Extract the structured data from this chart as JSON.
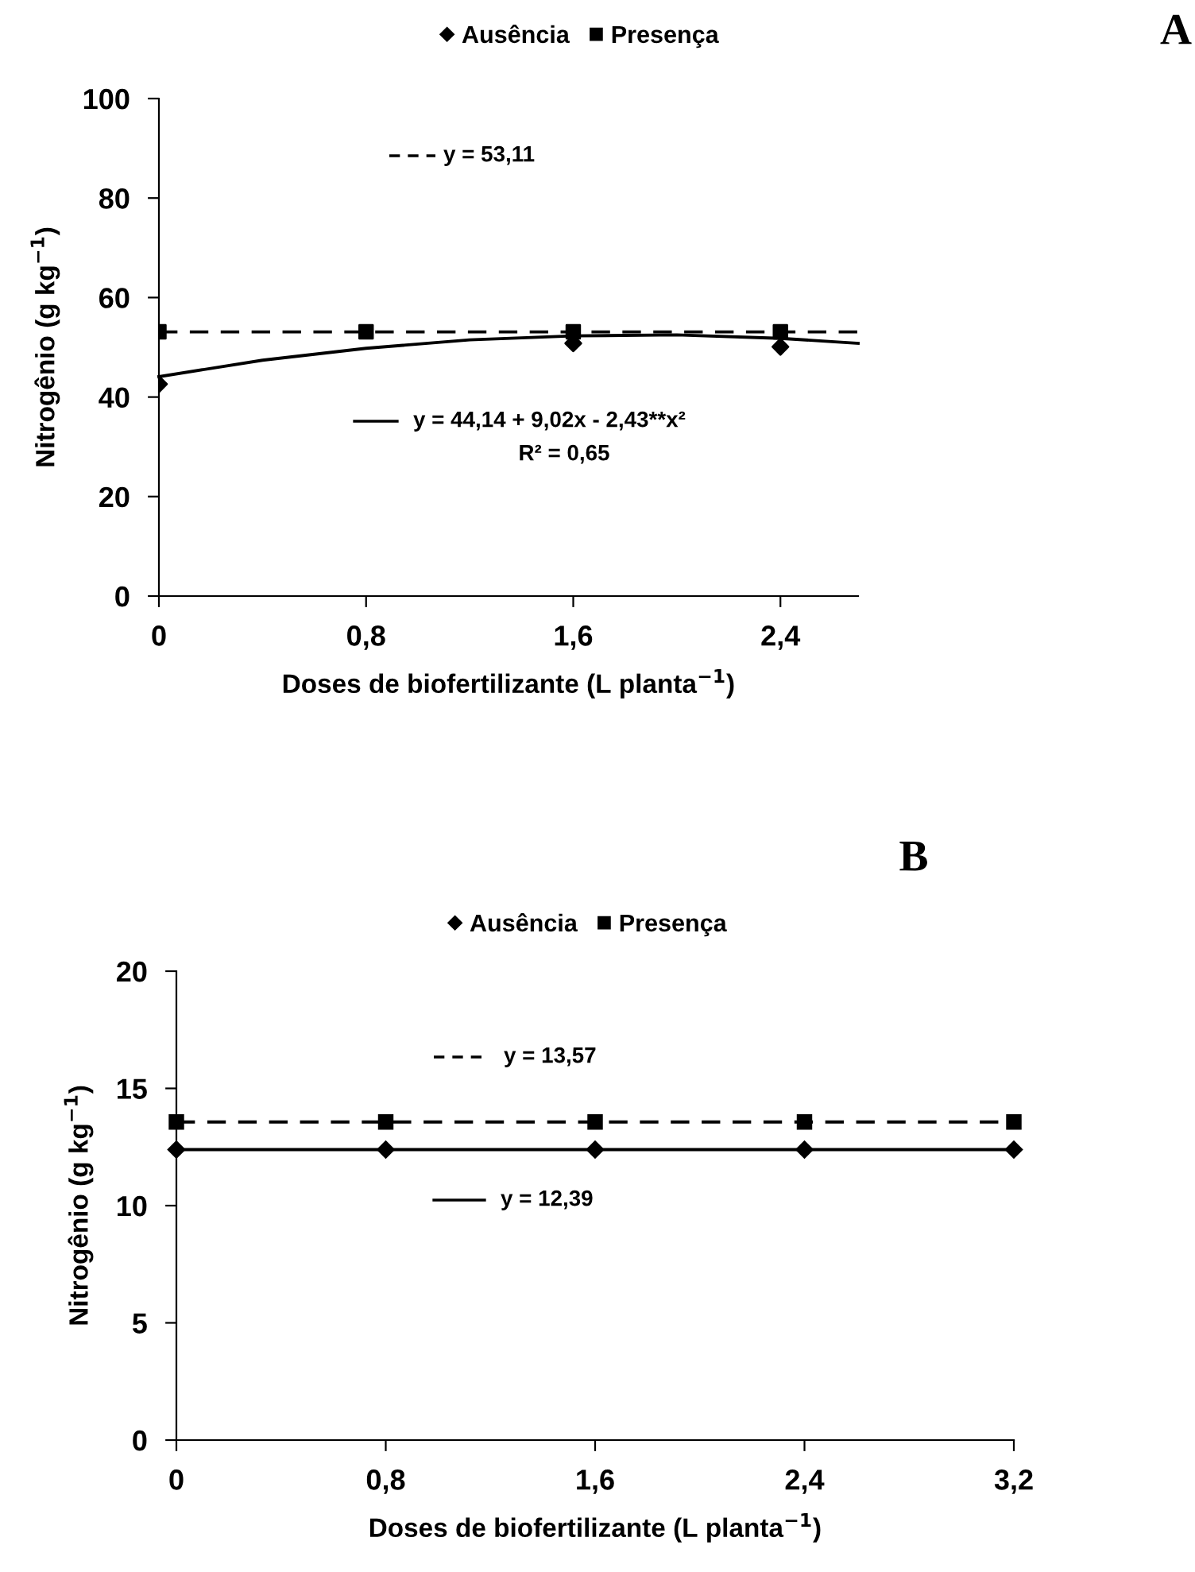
{
  "chart_data": [
    {
      "type": "scatter",
      "xlabel": "Doses de biofertilizante (L planta$^{−1}$)",
      "ylabel": "Nitrogênio (g kg$^{−1}$)",
      "xlim": [
        0,
        2.7
      ],
      "xticks": [
        0,
        {
          "value": 0.8,
          "label": "0,8"
        },
        {
          "value": 1.6,
          "label": "1,6"
        },
        {
          "value": 2.4,
          "label": "2,4"
        }
      ],
      "ylim": [
        0,
        100
      ],
      "yticks": [
        0,
        20,
        40,
        60,
        80,
        100
      ],
      "grid": false,
      "legend": "top",
      "annotations": [
        "A",
        "y = 53,11",
        "y = 44,14 + 9,02x - 2,43**x²",
        "R² = 0,65"
      ],
      "series": [
        {
          "name": "Ausência",
          "marker": "diamond",
          "color": "#000000",
          "x": [
            0,
            0.8,
            1.6,
            2.4
          ],
          "values": [
            42.6,
            null,
            50.8,
            50.1
          ]
        },
        {
          "name": "Presença",
          "marker": "square",
          "color": "#000000",
          "x": [
            0,
            0.8,
            1.6,
            2.4
          ],
          "values": [
            53.1,
            53.1,
            53.1,
            53.1
          ]
        },
        {
          "type": "line",
          "line_style": "solid",
          "color": "#000000",
          "x": [
            0,
            0.4,
            0.8,
            1.2,
            1.6,
            2.0,
            2.4,
            2.7
          ],
          "values": [
            44.1,
            47.4,
            49.8,
            51.5,
            52.3,
            52.5,
            51.8,
            50.8
          ]
        },
        {
          "type": "line",
          "line_style": "dashed",
          "color": "#000000",
          "x": [
            0,
            2.7
          ],
          "values": [
            53.1,
            53.1
          ]
        }
      ]
    },
    {
      "type": "line",
      "xlabel": "Doses de biofertilizante (L planta$^{−1}$)",
      "ylabel": "Nitrogênio (g kg$^{−1}$)",
      "xlim": [
        0,
        3.2
      ],
      "xticks": [
        0,
        {
          "value": 0.8,
          "label": "0,8"
        },
        {
          "value": 1.6,
          "label": "1,6"
        },
        {
          "value": 2.4,
          "label": "2,4"
        },
        {
          "value": 3.2,
          "label": "3,2"
        }
      ],
      "ylim": [
        0,
        20
      ],
      "yticks": [
        0,
        5,
        10,
        15,
        20
      ],
      "grid": false,
      "legend": "top",
      "annotations": [
        "B",
        "y = 13,57",
        "y = 12,39"
      ],
      "series": [
        {
          "name": "Ausência",
          "marker": "diamond",
          "line_style": "solid",
          "color": "#000000",
          "x": [
            0,
            0.8,
            1.6,
            2.4,
            3.2
          ],
          "values": [
            12.39,
            12.39,
            12.39,
            12.39,
            12.39
          ]
        },
        {
          "name": "Presença",
          "marker": "square",
          "line_style": "dashed",
          "color": "#000000",
          "x": [
            0,
            0.8,
            1.6,
            2.4,
            3.2
          ],
          "values": [
            13.57,
            13.57,
            13.57,
            13.57,
            13.57
          ]
        }
      ]
    }
  ]
}
